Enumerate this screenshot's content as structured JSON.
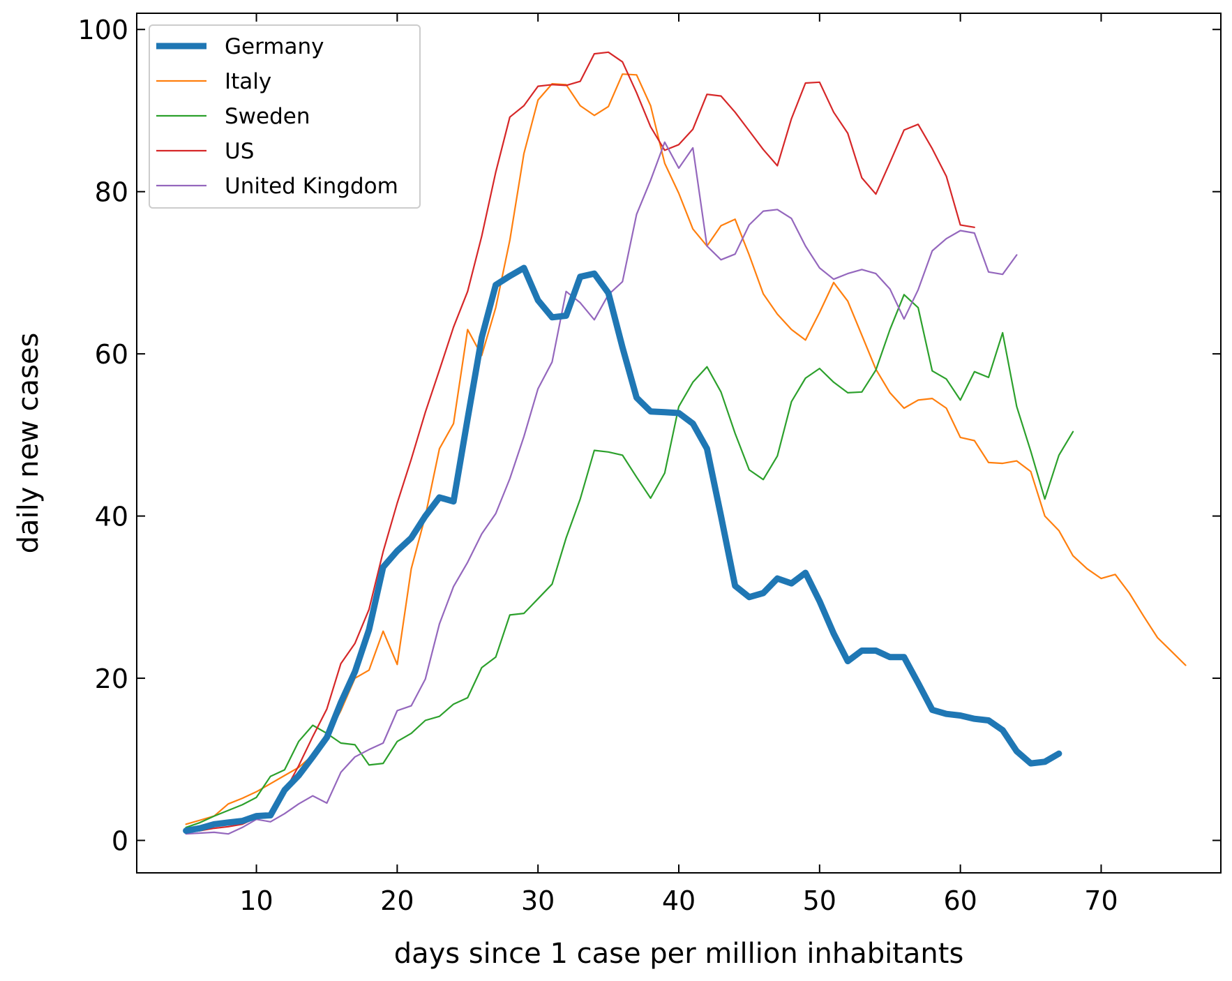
{
  "chart_data": {
    "type": "line",
    "title": "",
    "xlabel": "days since 1 case per million inhabitants",
    "ylabel": "daily new cases",
    "xlim": [
      1.5,
      78.5
    ],
    "ylim": [
      -4,
      102
    ],
    "xticks": [
      10,
      20,
      30,
      40,
      50,
      60,
      70
    ],
    "yticks": [
      0,
      20,
      40,
      60,
      80,
      100
    ],
    "grid": false,
    "legend": "top-left",
    "series": [
      {
        "name": "Germany",
        "color": "#1f77b4",
        "width": "thick",
        "x_start": 5,
        "values": [
          1.2,
          1.5,
          2,
          2.2,
          2.4,
          3,
          3.1,
          6.2,
          8,
          10.3,
          12.7,
          17,
          20.8,
          26,
          33.7,
          35.7,
          37.3,
          40,
          42.3,
          41.8,
          52,
          62,
          68.5,
          69.6,
          70.6,
          66.6,
          64.5,
          64.7,
          69.5,
          69.9,
          67.5,
          60.8,
          54.6,
          52.9,
          52.8,
          52.7,
          51.4,
          48.3,
          40,
          31.4,
          30,
          30.5,
          32.3,
          31.7,
          33,
          29.5,
          25.5,
          22.1,
          23.4,
          23.4,
          22.6,
          22.6,
          19.4,
          16.1,
          15.6,
          15.4,
          15,
          14.8,
          13.6,
          11,
          9.5,
          9.7,
          10.7
        ]
      },
      {
        "name": "Italy",
        "color": "#ff7f0e",
        "width": "thin",
        "x_start": 5,
        "values": [
          2,
          2.5,
          3,
          4.5,
          5.2,
          6,
          7,
          8,
          9,
          10.5,
          12.7,
          16,
          20,
          21,
          25.8,
          21.7,
          33.5,
          40,
          48.3,
          51.4,
          63,
          59.8,
          65.7,
          74,
          84.7,
          91.3,
          93.3,
          93.2,
          90.6,
          89.4,
          90.5,
          94.5,
          94.4,
          90.6,
          83.5,
          79.8,
          75.4,
          73.3,
          75.8,
          76.6,
          72.2,
          67.4,
          64.9,
          63,
          61.7,
          65.1,
          68.8,
          66.5,
          62.3,
          58.1,
          55.2,
          53.3,
          54.3,
          54.5,
          53.3,
          49.7,
          49.3,
          46.6,
          46.5,
          46.8,
          45.5,
          40,
          38.2,
          35.1,
          33.5,
          32.3,
          32.8,
          30.5,
          27.7,
          25,
          23.3,
          21.6
        ]
      },
      {
        "name": "Sweden",
        "color": "#2ca02c",
        "width": "thin",
        "x_start": 5,
        "values": [
          1.6,
          2.2,
          3,
          3.7,
          4.4,
          5.3,
          7.9,
          8.7,
          12.2,
          14.2,
          13.2,
          12,
          11.8,
          9.3,
          9.5,
          12.2,
          13.2,
          14.8,
          15.3,
          16.8,
          17.6,
          21.3,
          22.6,
          27.8,
          28,
          29.8,
          31.6,
          37.3,
          42.1,
          48.1,
          47.9,
          47.5,
          44.8,
          42.2,
          45.3,
          53.5,
          56.5,
          58.4,
          55.3,
          50.2,
          45.7,
          44.5,
          47.4,
          54.1,
          57,
          58.2,
          56.5,
          55.2,
          55.3,
          58,
          63,
          67.3,
          65.7,
          57.9,
          56.9,
          54.3,
          57.8,
          57.1,
          62.6,
          53.5,
          48,
          42.1,
          47.5,
          50.4
        ]
      },
      {
        "name": "US",
        "color": "#d62728",
        "width": "thin",
        "x_start": 5,
        "values": [
          1,
          1.2,
          1.5,
          1.7,
          2,
          2.8,
          3.2,
          6,
          9.2,
          12.8,
          16.2,
          21.8,
          24.3,
          28.5,
          35.6,
          41.6,
          47,
          52.8,
          58,
          63.3,
          67.7,
          74.5,
          82.4,
          89.2,
          90.6,
          93,
          93.2,
          93.1,
          93.6,
          97,
          97.2,
          96,
          92.2,
          88,
          85.1,
          85.8,
          87.7,
          92,
          91.8,
          89.8,
          87.5,
          85.2,
          83.2,
          89,
          93.4,
          93.5,
          89.8,
          87.2,
          81.7,
          79.7,
          83.6,
          87.6,
          88.3,
          85.3,
          81.9,
          75.9,
          75.6
        ]
      },
      {
        "name": "United Kingdom",
        "color": "#9467bd",
        "width": "thin",
        "x_start": 5,
        "values": [
          0.8,
          0.9,
          1,
          0.8,
          1.6,
          2.6,
          2.3,
          3.3,
          4.5,
          5.5,
          4.6,
          8.4,
          10.3,
          11.2,
          12,
          16,
          16.6,
          19.9,
          26.7,
          31.3,
          34.3,
          37.8,
          40.3,
          44.6,
          49.8,
          55.7,
          59,
          67.7,
          66.3,
          64.2,
          67.3,
          68.9,
          77.2,
          81.4,
          86.1,
          82.9,
          85.4,
          73.3,
          71.6,
          72.3,
          75.9,
          77.6,
          77.8,
          76.7,
          73.3,
          70.6,
          69.2,
          69.9,
          70.4,
          69.9,
          68,
          64.3,
          67.9,
          72.7,
          74.2,
          75.2,
          74.9,
          70.1,
          69.8,
          72.2
        ]
      }
    ]
  }
}
